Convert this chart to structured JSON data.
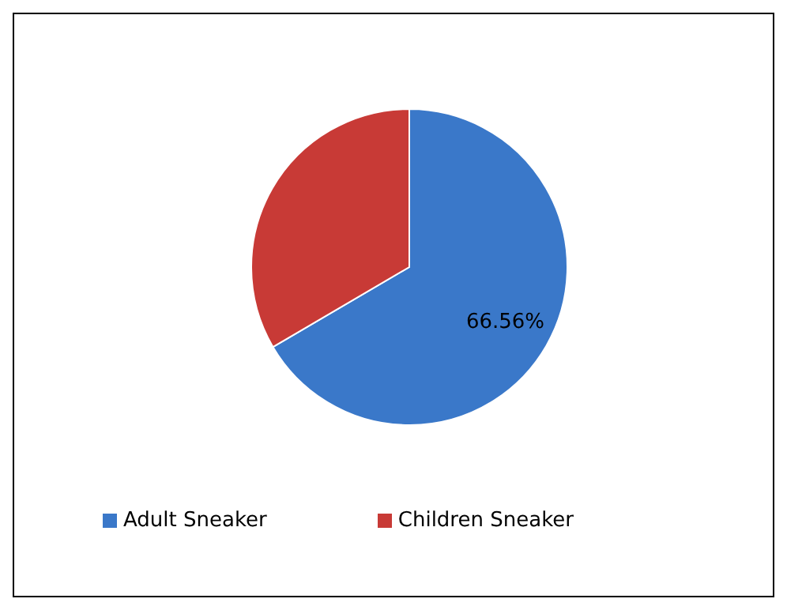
{
  "chart_data": {
    "type": "pie",
    "categories": [
      "Adult Sneaker",
      "Children Sneaker"
    ],
    "values": [
      66.56,
      33.44
    ],
    "colors": [
      "#3a78c9",
      "#c83a36"
    ],
    "value_labels": [
      "66.56%",
      null
    ],
    "legend": "bottom"
  }
}
